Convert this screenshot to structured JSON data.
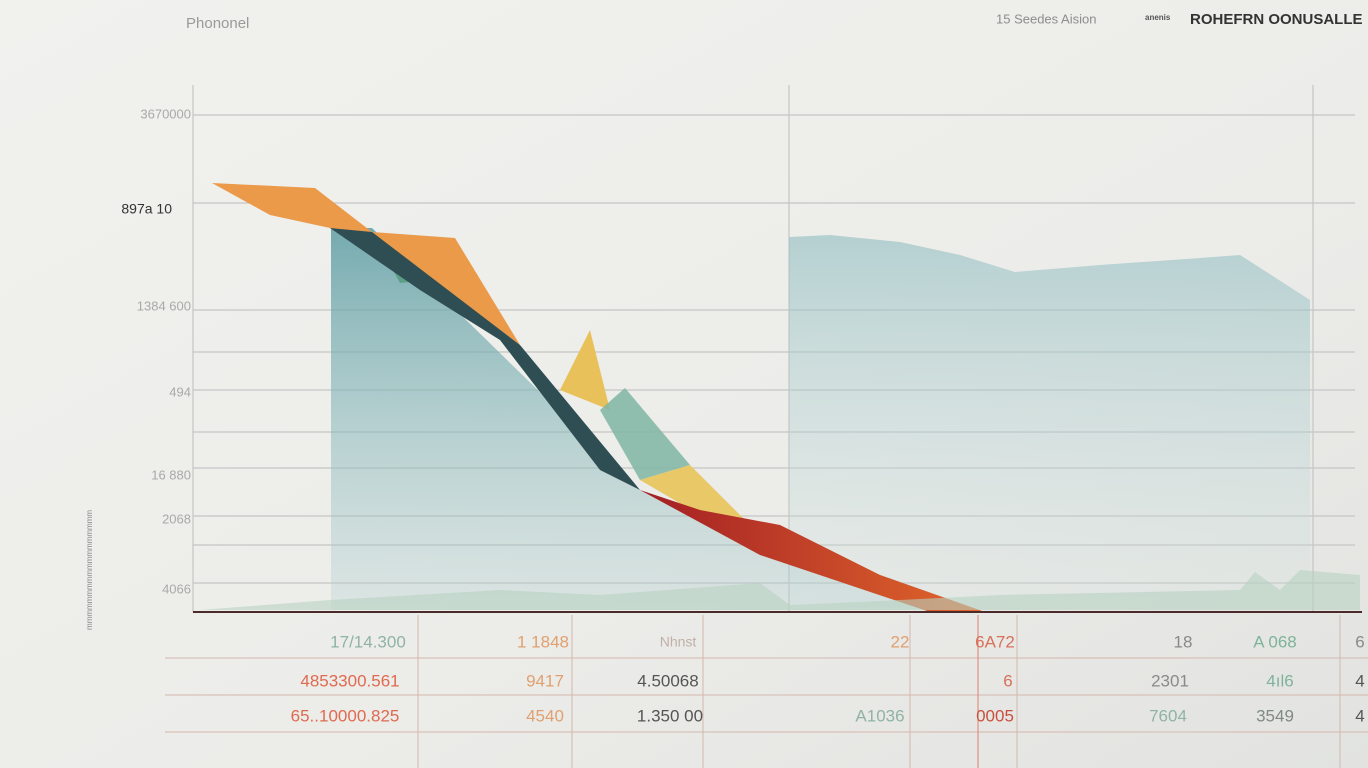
{
  "header": {
    "title": "Phononel",
    "subtitle": "15 Seedes Aision",
    "badge": "anenis",
    "brand": "ROHEFRN OONUSALLE"
  },
  "y_labels": [
    "3670000",
    "897a 10",
    "1384 600",
    "494",
    "16 880",
    "2068",
    "4066"
  ],
  "side_label": "mmmmmmmmmmmmmmmmmm",
  "table": {
    "rows": [
      [
        "17/14.300",
        "1 1848",
        "Nhnst",
        "22",
        "6A72",
        "18",
        "A 068",
        "6"
      ],
      [
        "4853300.561",
        "9417",
        "4.50068",
        "6",
        "2301",
        "4ıl6",
        "4"
      ],
      [
        "65..10000.825",
        "4540",
        "1.350 00",
        "A1036",
        "0005",
        "7604",
        "3549",
        "4"
      ]
    ]
  }
}
